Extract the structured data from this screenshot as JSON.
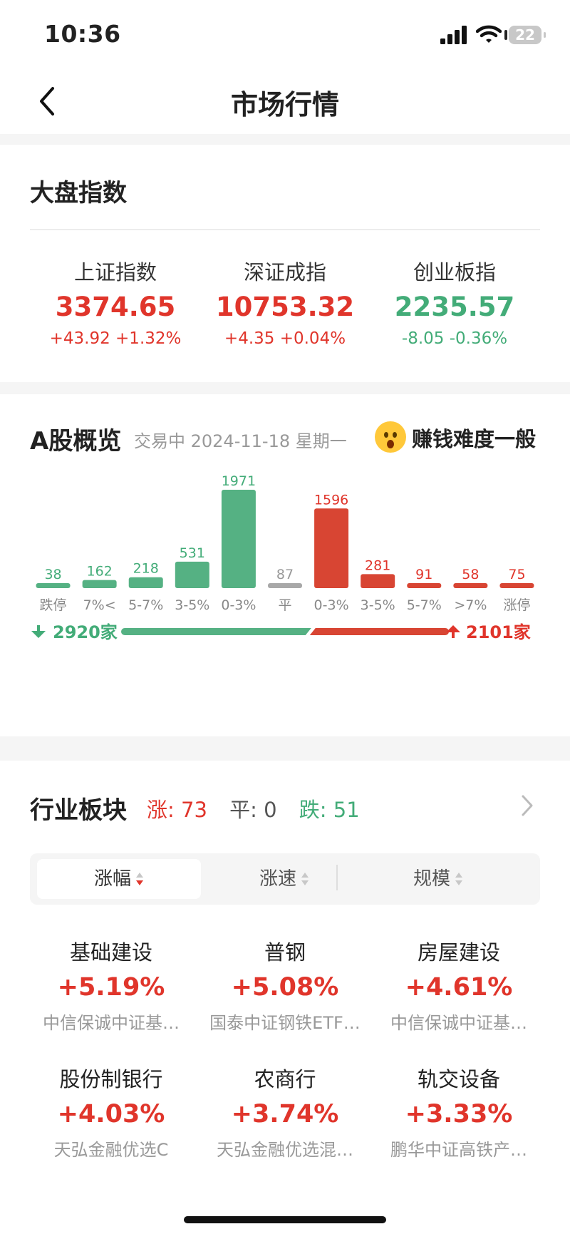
{
  "status": {
    "time": "10:36",
    "battery": "22"
  },
  "nav": {
    "title": "市场行情"
  },
  "indices": {
    "title": "大盘指数",
    "items": [
      {
        "name": "上证指数",
        "value": "3374.65",
        "change": "+43.92 +1.32%",
        "color": "#e0352b"
      },
      {
        "name": "深证成指",
        "value": "10753.32",
        "change": "+4.35 +0.04%",
        "color": "#e0352b"
      },
      {
        "name": "创业板指",
        "value": "2235.57",
        "change": "-8.05 -0.36%",
        "color": "#43ac78"
      }
    ]
  },
  "overview": {
    "title": "A股概览",
    "subtitle": "交易中 2024-11-18 星期一",
    "mood": "赚钱难度一般",
    "down_count": "2920家",
    "up_count": "2101家",
    "down_ratio": 0.58
  },
  "chart_data": {
    "type": "bar",
    "categories": [
      "跌停",
      "7%<",
      "5-7%",
      "3-5%",
      "0-3%",
      "平",
      "0-3%",
      "3-5%",
      "5-7%",
      ">7%",
      "涨停"
    ],
    "values": [
      38,
      162,
      218,
      531,
      1971,
      87,
      1596,
      281,
      91,
      58,
      75
    ],
    "colors": [
      "#55b183",
      "#55b183",
      "#55b183",
      "#55b183",
      "#55b183",
      "#a8a8a8",
      "#d84533",
      "#d84533",
      "#d84533",
      "#d84533",
      "#d84533"
    ],
    "label_colors": [
      "#43ac78",
      "#43ac78",
      "#43ac78",
      "#43ac78",
      "#43ac78",
      "#999999",
      "#e0352b",
      "#e0352b",
      "#e0352b",
      "#e0352b",
      "#e0352b"
    ],
    "ylim": [
      0,
      1971
    ]
  },
  "industry": {
    "title": "行业板块",
    "up_label": "涨: 73",
    "flat_label": "平: 0",
    "down_label": "跌: 51",
    "tabs": [
      {
        "label": "涨幅"
      },
      {
        "label": "涨速"
      },
      {
        "label": "规模"
      }
    ],
    "items": [
      {
        "name": "基础建设",
        "pct": "+5.19%",
        "fund": "中信保诚中证基…"
      },
      {
        "name": "普钢",
        "pct": "+5.08%",
        "fund": "国泰中证钢铁ETF…"
      },
      {
        "name": "房屋建设",
        "pct": "+4.61%",
        "fund": "中信保诚中证基…"
      },
      {
        "name": "股份制银行",
        "pct": "+4.03%",
        "fund": "天弘金融优选C"
      },
      {
        "name": "农商行",
        "pct": "+3.74%",
        "fund": "天弘金融优选混…"
      },
      {
        "name": "轨交设备",
        "pct": "+3.33%",
        "fund": "鹏华中证高铁产…"
      }
    ]
  }
}
